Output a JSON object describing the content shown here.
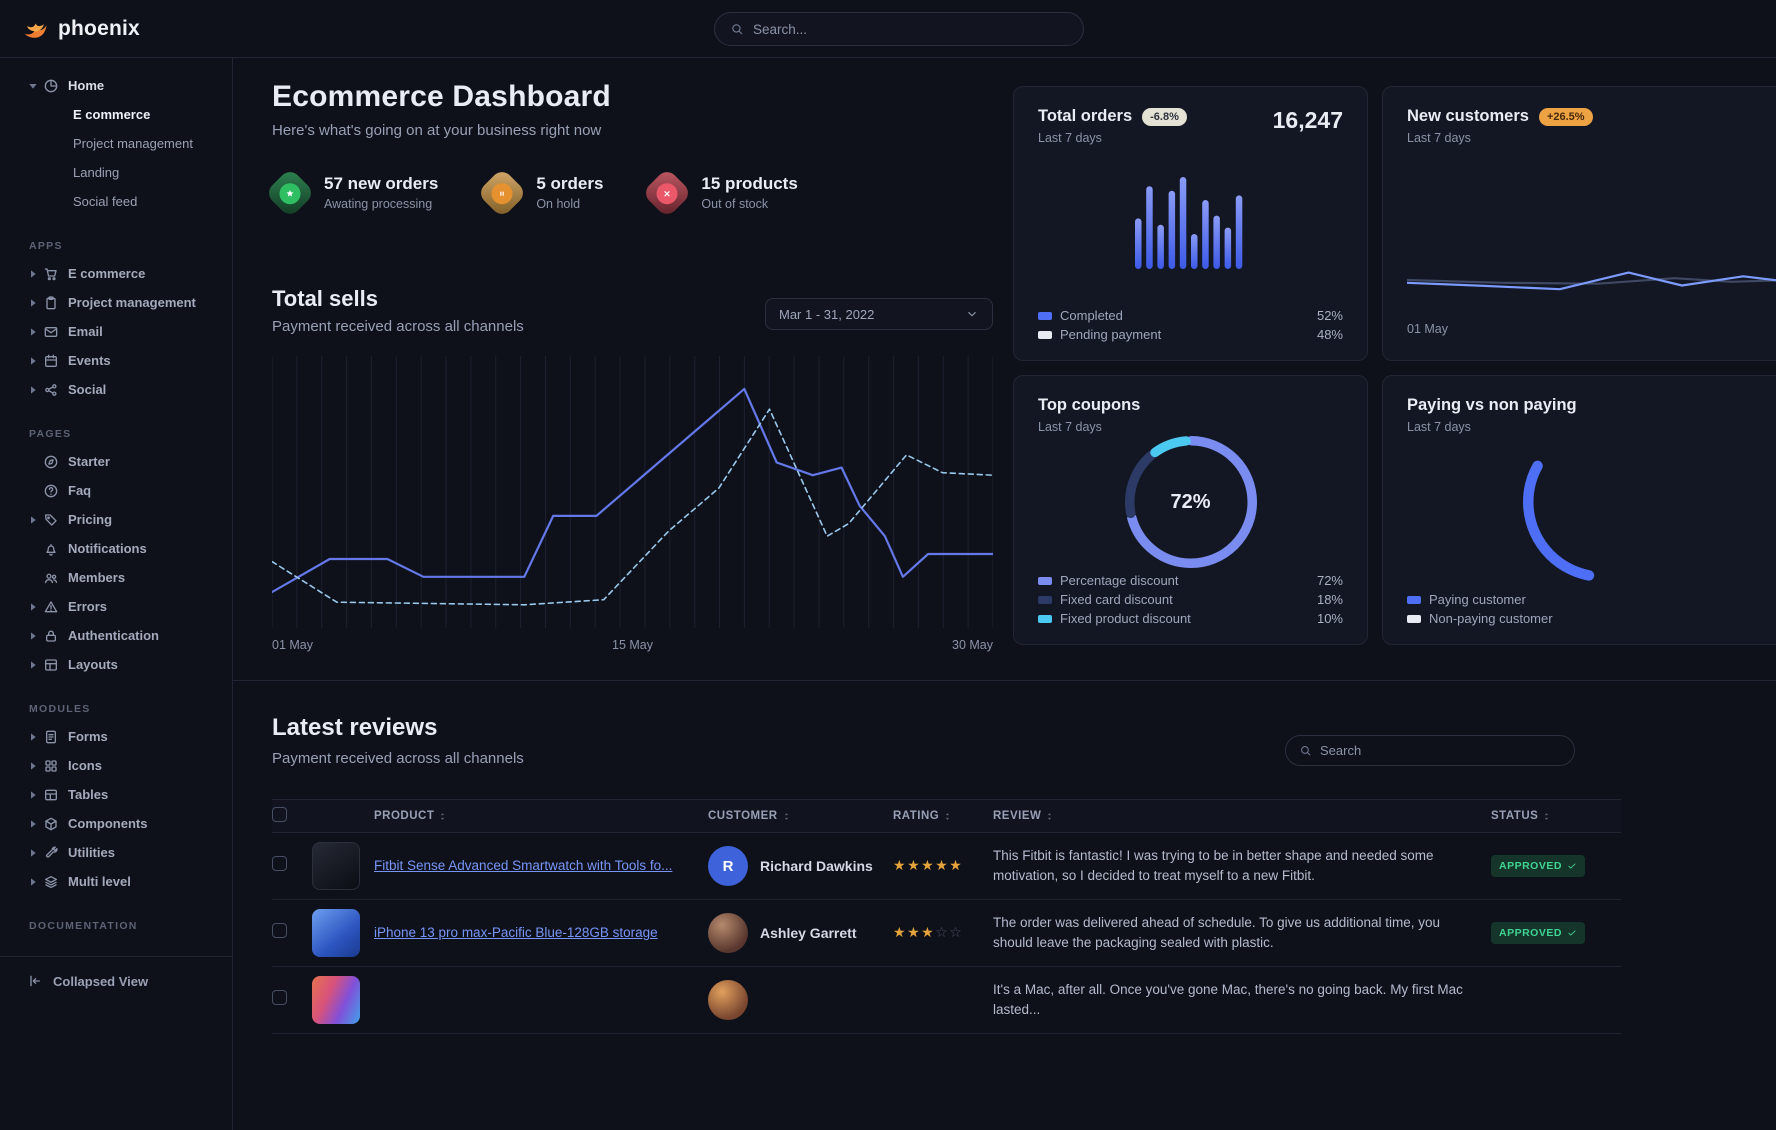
{
  "navbar": {
    "brand": "phoenix",
    "search_placeholder": "Search..."
  },
  "sidebar": {
    "home": {
      "label": "Home"
    },
    "home_children": [
      {
        "label": "E commerce"
      },
      {
        "label": "Project management"
      },
      {
        "label": "Landing"
      },
      {
        "label": "Social feed"
      }
    ],
    "groups": [
      {
        "title": "APPS",
        "items": [
          {
            "label": "E commerce"
          },
          {
            "label": "Project management"
          },
          {
            "label": "Email"
          },
          {
            "label": "Events"
          },
          {
            "label": "Social"
          }
        ]
      },
      {
        "title": "PAGES",
        "items": [
          {
            "label": "Starter"
          },
          {
            "label": "Faq"
          },
          {
            "label": "Pricing"
          },
          {
            "label": "Notifications"
          },
          {
            "label": "Members"
          },
          {
            "label": "Errors"
          },
          {
            "label": "Authentication"
          },
          {
            "label": "Layouts"
          }
        ]
      },
      {
        "title": "MODULES",
        "items": [
          {
            "label": "Forms"
          },
          {
            "label": "Icons"
          },
          {
            "label": "Tables"
          },
          {
            "label": "Components"
          },
          {
            "label": "Utilities"
          },
          {
            "label": "Multi level"
          }
        ]
      },
      {
        "title": "DOCUMENTATION",
        "items": []
      }
    ],
    "footer_label": "Collapsed View"
  },
  "hero": {
    "title": "Ecommerce Dashboard",
    "subtitle": "Here's what's going on at your business right now",
    "stats": [
      {
        "title": "57 new orders",
        "sub": "Awating processing"
      },
      {
        "title": "5 orders",
        "sub": "On hold"
      },
      {
        "title": "15 products",
        "sub": "Out of stock"
      }
    ]
  },
  "total_sells": {
    "title": "Total sells",
    "subtitle": "Payment received across all channels",
    "date_range": "Mar 1 - 31, 2022"
  },
  "cards": {
    "total_orders": {
      "title": "Total orders",
      "badge": "-6.8%",
      "period": "Last 7 days",
      "value": "16,247",
      "legend": [
        {
          "label": "Completed",
          "value": "52%"
        },
        {
          "label": "Pending payment",
          "value": "48%"
        }
      ]
    },
    "new_customers": {
      "title": "New customers",
      "badge": "+26.5%",
      "period": "Last 7 days",
      "x_label": "01 May"
    },
    "top_coupons": {
      "title": "Top coupons",
      "period": "Last 7 days",
      "center_value": "72%",
      "legend": [
        {
          "label": "Percentage discount",
          "value": "72%"
        },
        {
          "label": "Fixed card discount",
          "value": "18%"
        },
        {
          "label": "Fixed product discount",
          "value": "10%"
        }
      ]
    },
    "paying": {
      "title": "Paying vs non paying",
      "period": "Last 7 days",
      "legend": [
        {
          "label": "Paying customer"
        },
        {
          "label": "Non-paying customer"
        }
      ]
    }
  },
  "reviews": {
    "title": "Latest reviews",
    "subtitle": "Payment received across all channels",
    "search_placeholder": "Search",
    "columns": [
      "PRODUCT",
      "CUSTOMER",
      "RATING",
      "REVIEW",
      "STATUS"
    ],
    "rows": [
      {
        "product": "Fitbit Sense Advanced Smartwatch with Tools fo...",
        "customer": "Richard Dawkins",
        "avatar_text": "R",
        "rating": 5,
        "review": "This Fitbit is fantastic! I was trying to be in better shape and needed some motivation, so I decided to treat myself to a new Fitbit.",
        "status": "APPROVED"
      },
      {
        "product": "iPhone 13 pro max-Pacific Blue-128GB storage",
        "customer": "Ashley Garrett",
        "avatar_text": "",
        "rating": 3,
        "review": "The order was delivered ahead of schedule. To give us additional time, you should leave the packaging sealed with plastic.",
        "status": "APPROVED"
      },
      {
        "product": "",
        "customer": "",
        "avatar_text": "",
        "rating": "",
        "review": "It's a Mac, after all. Once you've gone Mac, there's no going back. My first Mac lasted...",
        "status": ""
      }
    ]
  },
  "chart_data": {
    "total_sells": {
      "type": "line",
      "x_labels": [
        "01 May",
        "15 May",
        "30 May"
      ],
      "ylim": [
        0,
        100
      ],
      "series": [
        {
          "name": "sells-current",
          "style": "solid",
          "values": [
            [
              0,
              11
            ],
            [
              0.08,
              24
            ],
            [
              0.16,
              24
            ],
            [
              0.21,
              17
            ],
            [
              0.35,
              17
            ],
            [
              0.39,
              41
            ],
            [
              0.45,
              41
            ],
            [
              0.655,
              91
            ],
            [
              0.7,
              62
            ],
            [
              0.75,
              57
            ],
            [
              0.79,
              60
            ],
            [
              0.815,
              45
            ],
            [
              0.85,
              33
            ],
            [
              0.875,
              17
            ],
            [
              0.91,
              26
            ],
            [
              1,
              26
            ]
          ]
        },
        {
          "name": "sells-previous",
          "style": "dashed",
          "values": [
            [
              0,
              23
            ],
            [
              0.09,
              7
            ],
            [
              0.35,
              6
            ],
            [
              0.46,
              8
            ],
            [
              0.55,
              35
            ],
            [
              0.62,
              52
            ],
            [
              0.69,
              83
            ],
            [
              0.77,
              33
            ],
            [
              0.8,
              38
            ],
            [
              0.88,
              65
            ],
            [
              0.93,
              58
            ],
            [
              1,
              57
            ]
          ]
        }
      ]
    },
    "total_orders_bars": {
      "type": "bar",
      "values": [
        55,
        90,
        48,
        85,
        100,
        38,
        75,
        58,
        45,
        80
      ]
    },
    "new_customers_line": {
      "type": "line",
      "series": [
        {
          "name": "previous",
          "style": "solid",
          "values": [
            [
              0,
              50
            ],
            [
              0.25,
              44
            ],
            [
              0.5,
              42
            ],
            [
              0.7,
              54
            ],
            [
              0.85,
              46
            ],
            [
              1,
              50
            ]
          ]
        },
        {
          "name": "current",
          "style": "solid",
          "values": [
            [
              0,
              44
            ],
            [
              0.18,
              38
            ],
            [
              0.4,
              30
            ],
            [
              0.58,
              66
            ],
            [
              0.72,
              38
            ],
            [
              0.88,
              58
            ],
            [
              1,
              46
            ]
          ]
        }
      ]
    },
    "top_coupons_donut": {
      "type": "pie",
      "slices": [
        {
          "label": "Percentage discount",
          "value": 72
        },
        {
          "label": "Fixed card discount",
          "value": 18
        },
        {
          "label": "Fixed product discount",
          "value": 10
        }
      ]
    },
    "paying_donut": {
      "type": "pie",
      "slices": [
        {
          "label": "Paying customer"
        },
        {
          "label": "Non-paying customer"
        }
      ]
    }
  },
  "colors": {
    "brand_orange": "#ed7e32",
    "accent_blue": "#3874ff",
    "line_primary": "#6478ea",
    "line_secondary": "#9ac8ec",
    "line_muted": "#3f4862",
    "customers_line": "#7c9bff",
    "bar_gradient_top": "#8a9bf6",
    "bar_gradient_bottom": "#3d5ae8",
    "chip_blue": "#4d6ef5",
    "chip_white": "#e8ebf2",
    "chip_navy": "#2c3a66",
    "chip_cyan": "#4cc9f0",
    "chip_lightblue": "#7a8cf0",
    "success_text": "#40d493",
    "star_filled": "#e5a33b"
  }
}
